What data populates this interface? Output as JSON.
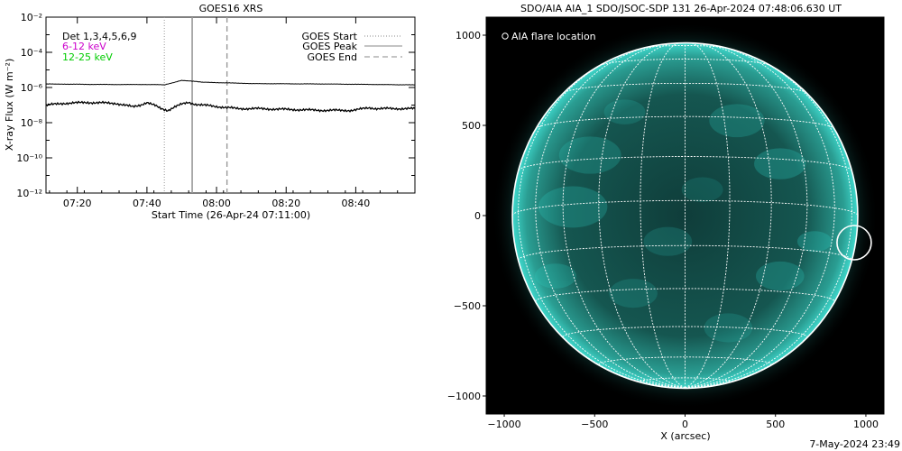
{
  "footer_timestamp": "7-May-2024 23:49",
  "colors": {
    "low_channel": "#cc00cc",
    "high_channel": "#00cc00",
    "aia_131": "#2bd1c4",
    "axes": "#000000"
  },
  "chart_data": [
    {
      "type": "line",
      "title": "GOES16 XRS",
      "xlabel": "Start Time (26-Apr-24 07:11:00)",
      "ylabel": "X-ray Flux (W m⁻²)",
      "x_ticks": [
        "07:20",
        "07:40",
        "08:00",
        "08:20",
        "08:40"
      ],
      "x_tick_minutes": [
        9,
        29,
        49,
        69,
        89
      ],
      "x_range_minutes": [
        0,
        106
      ],
      "y_scale": "log",
      "y_ticks": [
        "10⁻²",
        "10⁻⁴",
        "10⁻⁶",
        "10⁻⁸",
        "10⁻¹⁰",
        "10⁻¹²"
      ],
      "y_tick_exponents": [
        -2,
        -4,
        -6,
        -8,
        -10,
        -12
      ],
      "y_range_exponents": [
        -12,
        -2
      ],
      "detectors_label": "Det 1,3,4,5,6,9",
      "series": [
        {
          "name": "6-12 keV",
          "x_minutes": [
            0,
            10,
            20,
            28,
            33,
            34,
            37,
            39,
            43,
            45,
            60,
            80,
            100,
            106
          ],
          "y_exponent": [
            -5.8,
            -5.82,
            -5.83,
            -5.83,
            -5.84,
            -5.85,
            -5.7,
            -5.6,
            -5.65,
            -5.7,
            -5.78,
            -5.8,
            -5.84,
            -5.85
          ]
        },
        {
          "name": "12-25 keV",
          "x_minutes": [
            0,
            5,
            12,
            20,
            25,
            27,
            29,
            31,
            33,
            35,
            37,
            39,
            41,
            43,
            45,
            50,
            55,
            60,
            70,
            80,
            88,
            93,
            95,
            100,
            106
          ],
          "y_exponent": [
            -7.0,
            -6.9,
            -6.85,
            -6.9,
            -7.1,
            -7.0,
            -6.85,
            -7.0,
            -7.2,
            -7.3,
            -7.1,
            -6.95,
            -6.85,
            -6.95,
            -7.0,
            -7.1,
            -7.2,
            -7.2,
            -7.25,
            -7.3,
            -7.3,
            -7.15,
            -7.2,
            -7.2,
            -7.2
          ]
        }
      ],
      "events": [
        {
          "name": "GOES Start",
          "minute": 34,
          "style": "dotted"
        },
        {
          "name": "GOES Peak",
          "minute": 42,
          "style": "solid"
        },
        {
          "name": "GOES End",
          "minute": 52,
          "style": "dashed"
        }
      ]
    },
    {
      "type": "scatter",
      "title": "SDO/AIA AIA_1 SDO/JSOC-SDP 131 26-Apr-2024 07:48:06.630 UT",
      "xlabel": "X (arcsec)",
      "ylabel": "",
      "x_ticks": [
        -1000,
        -500,
        0,
        500,
        1000
      ],
      "y_ticks": [
        1000,
        500,
        0,
        -500,
        -1000
      ],
      "x_range": [
        -1100,
        1100
      ],
      "y_range": [
        -1100,
        1100
      ],
      "solar_radius_arcsec": 955,
      "legend": "AIA flare location",
      "points": [
        {
          "name": "AIA flare location",
          "x": 935,
          "y": -150
        }
      ]
    }
  ]
}
